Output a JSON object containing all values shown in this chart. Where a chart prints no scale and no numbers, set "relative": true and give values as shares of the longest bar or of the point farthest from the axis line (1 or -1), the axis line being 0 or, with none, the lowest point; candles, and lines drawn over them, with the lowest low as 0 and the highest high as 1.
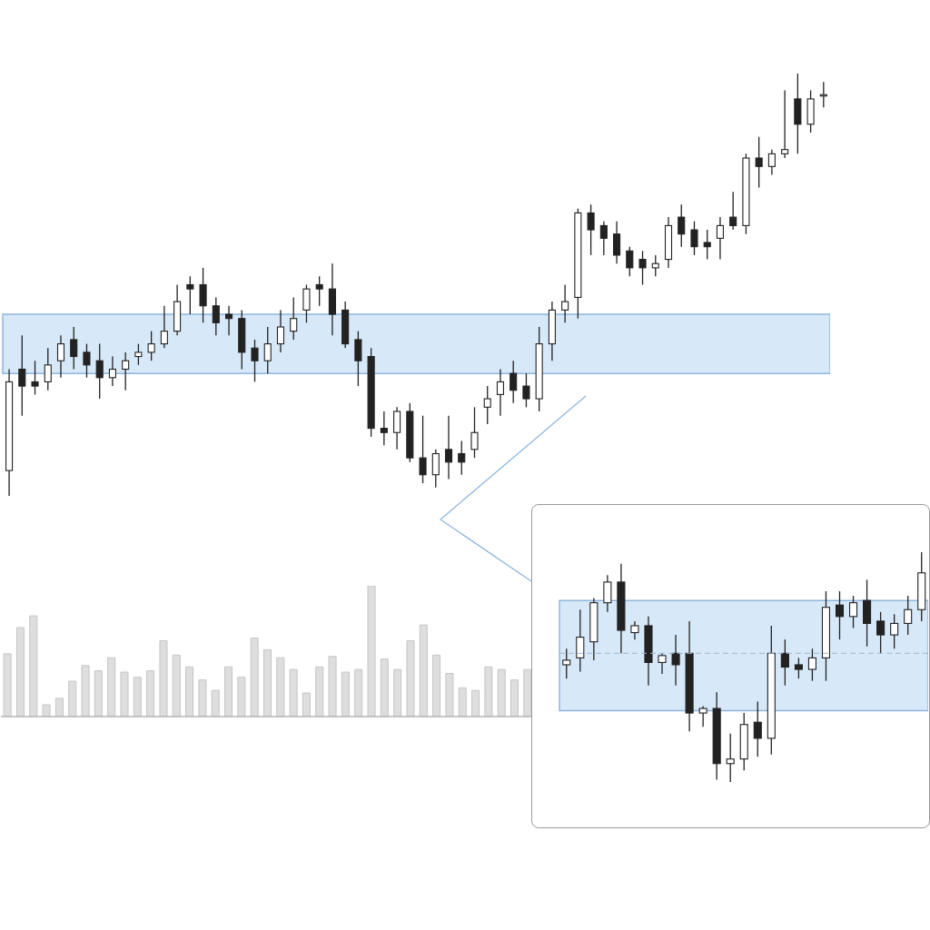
{
  "chart_data": [
    {
      "type": "candlestick",
      "relative": true,
      "tick_labels": false,
      "categories": [
        null,
        null,
        null,
        null,
        null,
        null,
        null,
        null,
        null,
        null,
        null,
        null,
        null,
        null,
        null,
        null,
        null,
        null,
        null,
        null,
        null,
        null,
        null,
        null,
        null,
        null,
        null,
        null,
        null,
        null,
        null,
        null,
        null,
        null,
        null,
        null,
        null,
        null,
        null,
        null,
        null,
        null,
        null,
        null,
        null,
        null,
        null,
        null,
        null,
        null,
        null,
        null,
        null,
        null,
        null,
        null,
        null,
        null,
        null,
        null,
        null,
        null,
        null,
        null
      ],
      "ohlc": [
        [
          0.06,
          0.3,
          0,
          0.27
        ],
        [
          0.3,
          0.38,
          0.19,
          0.26
        ],
        [
          0.27,
          0.32,
          0.24,
          0.26
        ],
        [
          0.27,
          0.35,
          0.25,
          0.31
        ],
        [
          0.32,
          0.38,
          0.28,
          0.36
        ],
        [
          0.37,
          0.4,
          0.3,
          0.33
        ],
        [
          0.34,
          0.36,
          0.28,
          0.31
        ],
        [
          0.32,
          0.36,
          0.23,
          0.28
        ],
        [
          0.28,
          0.33,
          0.26,
          0.3
        ],
        [
          0.3,
          0.34,
          0.25,
          0.32
        ],
        [
          0.33,
          0.36,
          0.31,
          0.34
        ],
        [
          0.34,
          0.39,
          0.32,
          0.36
        ],
        [
          0.36,
          0.45,
          0.35,
          0.39
        ],
        [
          0.39,
          0.5,
          0.38,
          0.46
        ],
        [
          0.5,
          0.52,
          0.43,
          0.49
        ],
        [
          0.5,
          0.54,
          0.41,
          0.45
        ],
        [
          0.45,
          0.47,
          0.38,
          0.41
        ],
        [
          0.43,
          0.45,
          0.38,
          0.42
        ],
        [
          0.42,
          0.44,
          0.3,
          0.34
        ],
        [
          0.35,
          0.37,
          0.27,
          0.32
        ],
        [
          0.32,
          0.4,
          0.29,
          0.36
        ],
        [
          0.36,
          0.44,
          0.34,
          0.4
        ],
        [
          0.39,
          0.47,
          0.37,
          0.42
        ],
        [
          0.44,
          0.5,
          0.41,
          0.49
        ],
        [
          0.5,
          0.52,
          0.45,
          0.49
        ],
        [
          0.49,
          0.55,
          0.38,
          0.43
        ],
        [
          0.44,
          0.46,
          0.35,
          0.36
        ],
        [
          0.37,
          0.39,
          0.26,
          0.32
        ],
        [
          0.33,
          0.35,
          0.14,
          0.16
        ],
        [
          0.16,
          0.2,
          0.12,
          0.15
        ],
        [
          0.15,
          0.21,
          0.11,
          0.2
        ],
        [
          0.2,
          0.22,
          0.08,
          0.09
        ],
        [
          0.09,
          0.19,
          0.03,
          0.05
        ],
        [
          0.05,
          0.11,
          0.02,
          0.1
        ],
        [
          0.11,
          0.19,
          0.04,
          0.08
        ],
        [
          0.1,
          0.13,
          0.05,
          0.08
        ],
        [
          0.11,
          0.21,
          0.09,
          0.15
        ],
        [
          0.21,
          0.26,
          0.17,
          0.23
        ],
        [
          0.24,
          0.3,
          0.19,
          0.27
        ],
        [
          0.29,
          0.32,
          0.22,
          0.25
        ],
        [
          0.26,
          0.29,
          0.21,
          0.23
        ],
        [
          0.23,
          0.4,
          0.2,
          0.36
        ],
        [
          0.36,
          0.46,
          0.32,
          0.44
        ],
        [
          0.44,
          0.5,
          0.41,
          0.46
        ],
        [
          0.47,
          0.68,
          0.42,
          0.67
        ],
        [
          0.67,
          0.69,
          0.57,
          0.63
        ],
        [
          0.64,
          0.65,
          0.57,
          0.61
        ],
        [
          0.62,
          0.65,
          0.55,
          0.57
        ],
        [
          0.58,
          0.59,
          0.52,
          0.54
        ],
        [
          0.56,
          0.58,
          0.5,
          0.54
        ],
        [
          0.54,
          0.57,
          0.52,
          0.55
        ],
        [
          0.56,
          0.66,
          0.54,
          0.64
        ],
        [
          0.66,
          0.69,
          0.59,
          0.62
        ],
        [
          0.63,
          0.65,
          0.57,
          0.59
        ],
        [
          0.6,
          0.63,
          0.56,
          0.59
        ],
        [
          0.61,
          0.66,
          0.56,
          0.64
        ],
        [
          0.66,
          0.72,
          0.63,
          0.64
        ],
        [
          0.64,
          0.81,
          0.62,
          0.8
        ],
        [
          0.8,
          0.85,
          0.73,
          0.78
        ],
        [
          0.78,
          0.82,
          0.76,
          0.81
        ],
        [
          0.81,
          0.96,
          0.8,
          0.82
        ],
        [
          0.94,
          1.0,
          0.81,
          0.88
        ],
        [
          0.88,
          0.96,
          0.86,
          0.94
        ],
        [
          0.95,
          0.98,
          0.92,
          0.95
        ]
      ],
      "bands": [
        {
          "axis": "y",
          "from": 0.29,
          "to": 0.43,
          "color": "#d3e6f8"
        }
      ]
    },
    {
      "type": "bar",
      "relative": true,
      "tick_labels": false,
      "color": "#dedede",
      "categories": [
        null,
        null,
        null,
        null,
        null,
        null,
        null,
        null,
        null,
        null,
        null,
        null,
        null,
        null,
        null,
        null,
        null,
        null,
        null,
        null,
        null,
        null,
        null,
        null,
        null,
        null,
        null,
        null,
        null,
        null,
        null,
        null,
        null,
        null,
        null,
        null,
        null,
        null,
        null,
        null,
        null
      ],
      "values": [
        0.48,
        0.68,
        0.77,
        0.09,
        0.14,
        0.27,
        0.39,
        0.35,
        0.45,
        0.34,
        0.3,
        0.35,
        0.58,
        0.47,
        0.38,
        0.28,
        0.2,
        0.38,
        0.3,
        0.6,
        0.51,
        0.45,
        0.36,
        0.18,
        0.38,
        0.46,
        0.34,
        0.36,
        1,
        0.44,
        0.36,
        0.58,
        0.7,
        0.47,
        0.33,
        0.22,
        0.2,
        0.38,
        0.36,
        0.28,
        0.36
      ]
    },
    {
      "type": "candlestick",
      "relative": true,
      "tick_labels": false,
      "categories": [
        null,
        null,
        null,
        null,
        null,
        null,
        null,
        null,
        null,
        null,
        null,
        null,
        null,
        null,
        null,
        null,
        null,
        null,
        null,
        null,
        null,
        null,
        null,
        null,
        null,
        null,
        null
      ],
      "ohlc": [
        [
          0.51,
          0.58,
          0.45,
          0.53
        ],
        [
          0.54,
          0.75,
          0.48,
          0.63
        ],
        [
          0.61,
          0.8,
          0.53,
          0.78
        ],
        [
          0.78,
          0.9,
          0.74,
          0.87
        ],
        [
          0.87,
          0.95,
          0.56,
          0.66
        ],
        [
          0.65,
          0.7,
          0.62,
          0.68
        ],
        [
          0.68,
          0.72,
          0.42,
          0.52
        ],
        [
          0.52,
          0.56,
          0.47,
          0.55
        ],
        [
          0.56,
          0.64,
          0.42,
          0.51
        ],
        [
          0.56,
          0.7,
          0.22,
          0.3
        ],
        [
          0.3,
          0.33,
          0.24,
          0.32
        ],
        [
          0.32,
          0.39,
          0.01,
          0.08
        ],
        [
          0.08,
          0.21,
          0,
          0.1
        ],
        [
          0.1,
          0.3,
          0.05,
          0.25
        ],
        [
          0.26,
          0.35,
          0.11,
          0.19
        ],
        [
          0.19,
          0.68,
          0.12,
          0.56
        ],
        [
          0.56,
          0.62,
          0.42,
          0.5
        ],
        [
          0.51,
          0.54,
          0.45,
          0.49
        ],
        [
          0.49,
          0.58,
          0.44,
          0.54
        ],
        [
          0.54,
          0.83,
          0.44,
          0.76
        ],
        [
          0.77,
          0.83,
          0.62,
          0.72
        ],
        [
          0.72,
          0.81,
          0.67,
          0.78
        ],
        [
          0.79,
          0.88,
          0.59,
          0.69
        ],
        [
          0.7,
          0.74,
          0.56,
          0.64
        ],
        [
          0.64,
          0.73,
          0.58,
          0.69
        ],
        [
          0.69,
          0.81,
          0.64,
          0.75
        ],
        [
          0.75,
          1,
          0.7,
          0.91
        ]
      ],
      "bands": [
        {
          "axis": "y",
          "from": 0.31,
          "to": 0.79,
          "color": "#d3e6f8"
        }
      ],
      "ref_lines": [
        {
          "axis": "y",
          "value": 0.56,
          "line_style": "dashed",
          "color": "#9fb8cf"
        }
      ]
    }
  ]
}
